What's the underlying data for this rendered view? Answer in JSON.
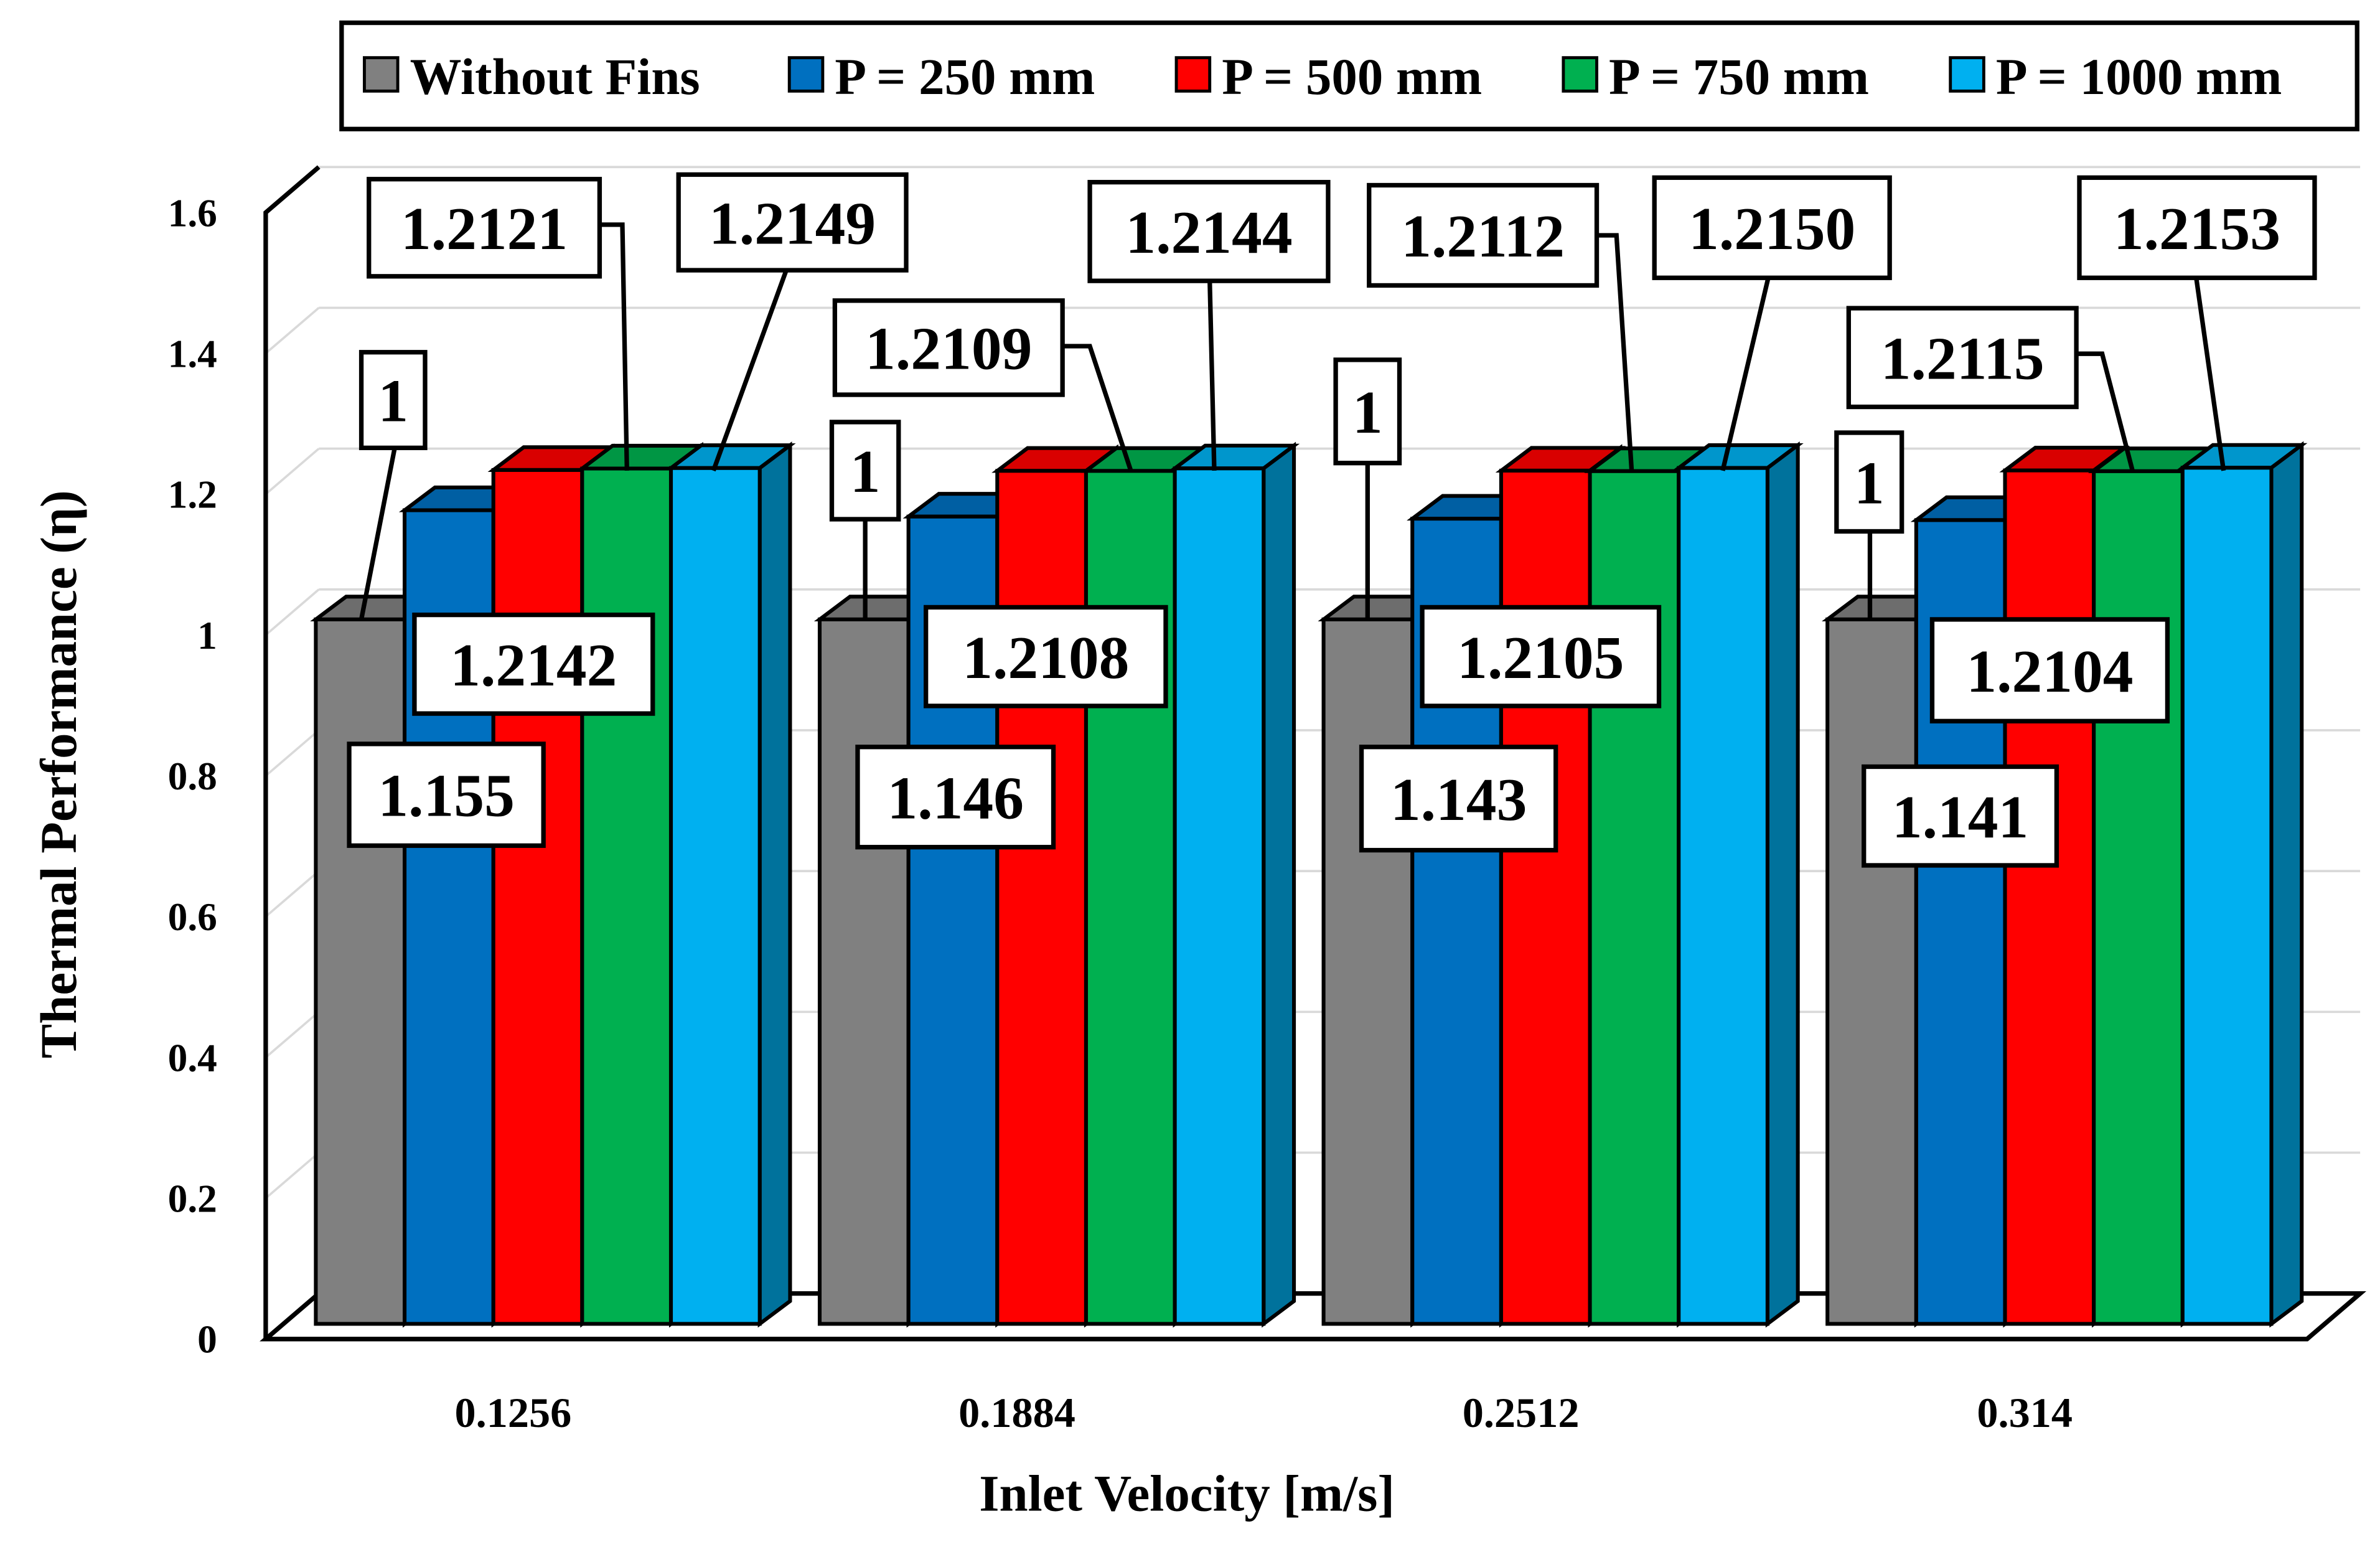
{
  "chart_data": {
    "type": "bar",
    "style": "3d-clustered-column",
    "title": "",
    "xlabel": "Inlet Velocity [m/s]",
    "ylabel": "Thermal Performance (η)",
    "ylim": [
      0,
      1.6
    ],
    "yticks": [
      "0",
      "0.2",
      "0.4",
      "0.6",
      "0.8",
      "1",
      "1.2",
      "1.4",
      "1.6"
    ],
    "grid": true,
    "legend_placement": "top",
    "categories": [
      "0.1256",
      "0.1884",
      "0.2512",
      "0.314"
    ],
    "series": [
      {
        "name": "Without Fins",
        "color": "#808080",
        "values": [
          1,
          1,
          1,
          1
        ],
        "labels": [
          "1",
          "1",
          "1",
          "1"
        ]
      },
      {
        "name": "P = 250 mm",
        "color": "#0070C0",
        "values": [
          1.155,
          1.146,
          1.143,
          1.141
        ],
        "labels": [
          "1.155",
          "1.146",
          "1.143",
          "1.141"
        ]
      },
      {
        "name": "P = 500 mm",
        "color": "#FF0000",
        "values": [
          1.2121,
          1.2109,
          1.2112,
          1.2115
        ],
        "labels": [
          "1.2121",
          "1.2109",
          "1.2112",
          "1.2115"
        ]
      },
      {
        "name": "P = 750 mm",
        "color": "#00B050",
        "values": [
          1.2142,
          1.2108,
          1.2105,
          1.2104
        ],
        "labels": [
          "1.2142",
          "1.2108",
          "1.2105",
          "1.2104"
        ]
      },
      {
        "name": "P = 1000 mm",
        "color": "#00B0F0",
        "values": [
          1.2149,
          1.2144,
          1.215,
          1.2153
        ],
        "labels": [
          "1.2149",
          "1.2144",
          "1.2150",
          "1.2153"
        ]
      }
    ]
  }
}
